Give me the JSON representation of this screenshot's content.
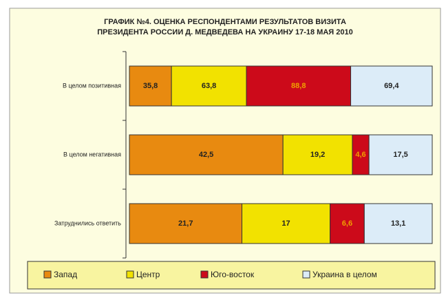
{
  "chart_data": {
    "type": "stacked_bar_horizontal",
    "stacked": "percent",
    "title": [
      "ГРАФИК №4. ОЦЕНКА РЕСПОНДЕНТАМИ РЕЗУЛЬТАТОВ ВИЗИТА",
      "ПРЕЗИДЕНТА РОССИИ Д. МЕДВЕДЕВА НА УКРАИНУ 17-18 МАЯ 2010"
    ],
    "categories": [
      "В целом позитивная",
      "В целом негативная",
      "Затруднились ответить"
    ],
    "series": [
      {
        "name": "Запад",
        "color": "#e88a10",
        "values": [
          35.8,
          42.5,
          21.7
        ],
        "value_labels": [
          "35,8",
          "42,5",
          "21,7"
        ]
      },
      {
        "name": "Центр",
        "color": "#f2e200",
        "values": [
          63.8,
          19.2,
          17
        ],
        "value_labels": [
          "63,8",
          "19,2",
          "17"
        ]
      },
      {
        "name": "Юго-восток",
        "color": "#cc0a1a",
        "values": [
          88.8,
          4.6,
          6.6
        ],
        "value_labels": [
          "88,8",
          "4,6",
          "6,6"
        ]
      },
      {
        "name": "Украина в целом",
        "color": "#dcecf8",
        "values": [
          69.4,
          17.5,
          13.1
        ],
        "value_labels": [
          "69,4",
          "17,5",
          "13,1"
        ]
      }
    ],
    "legend": "bottom"
  }
}
